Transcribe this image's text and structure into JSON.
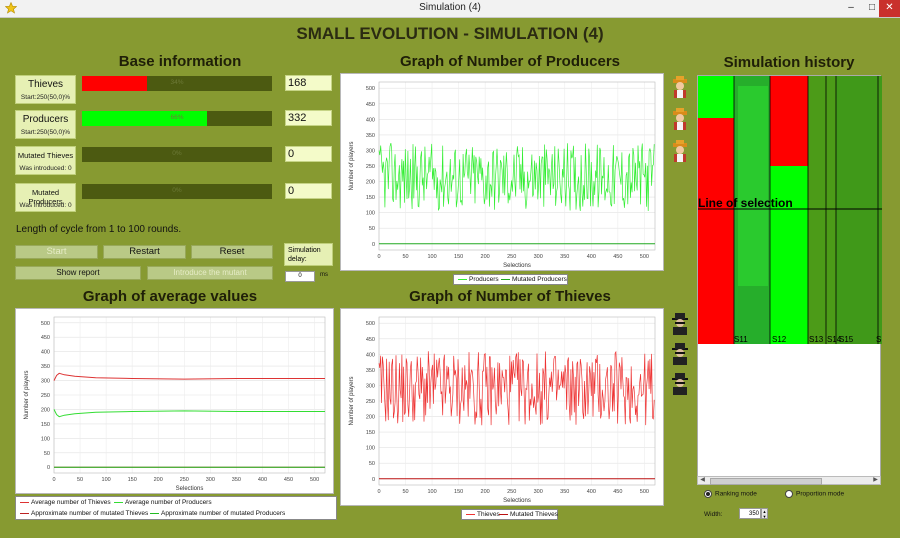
{
  "window": {
    "title": "Simulation (4)",
    "min": "–",
    "max": "□",
    "close": "✕",
    "app_icon": "star-icon"
  },
  "main_title": "SMALL EVOLUTION - SIMULATION (4)",
  "base_info": {
    "title": "Base information",
    "rows": [
      {
        "label": "Thieves",
        "sub": "Start:250(50,0)%",
        "percent": 34,
        "percent_text": "34%",
        "count": "168",
        "fill": "#ff0000"
      },
      {
        "label": "Producers",
        "sub": "Start:250(50,0)%",
        "percent": 66,
        "percent_text": "66%",
        "count": "332",
        "fill": "#00ff00"
      },
      {
        "label": "Mutated Thieves",
        "sub": "Was introduced: 0",
        "percent": 0,
        "percent_text": "0%",
        "count": "0",
        "fill": "#ff0000"
      },
      {
        "label": "Mutated Producers",
        "sub": "Was introduced: 0",
        "percent": 0,
        "percent_text": "0%",
        "count": "0",
        "fill": "#00ff00"
      }
    ],
    "cycle_text": "Length of cycle from 1 to 100 rounds.",
    "buttons": {
      "start": "Start",
      "restart": "Restart",
      "reset": "Reset",
      "show_report": "Show report",
      "introduce_mutant": "Introduce the mutant"
    },
    "delay": {
      "label": "Simulation delay:",
      "value": "0",
      "unit": "ms"
    }
  },
  "charts": {
    "producers_title": "Graph of Number of Producers",
    "thieves_title": "Graph of Number of Thieves",
    "average_title": "Graph of average values",
    "history_title": "Simulation history"
  },
  "chart_data": [
    {
      "type": "line",
      "title": "Graph of Number of Producers",
      "xlabel": "Selections",
      "ylabel": "Number of players",
      "xlim": [
        0,
        520
      ],
      "ylim": [
        -20,
        520
      ],
      "x_ticks": [
        0,
        50,
        100,
        150,
        200,
        250,
        300,
        350,
        400,
        450,
        500
      ],
      "y_ticks": [
        0,
        50,
        100,
        150,
        200,
        250,
        300,
        350,
        400,
        450,
        500
      ],
      "series": [
        {
          "name": "Producers",
          "color": "#33ee33",
          "center": 215,
          "amplitude": 110,
          "noisy": true
        },
        {
          "name": "Mutated Producers",
          "color": "#22aa22",
          "values": [
            0,
            0
          ]
        }
      ]
    },
    {
      "type": "line",
      "title": "Graph of Number of Thieves",
      "xlabel": "Selections",
      "ylabel": "Number of players",
      "xlim": [
        0,
        520
      ],
      "ylim": [
        -20,
        520
      ],
      "x_ticks": [
        0,
        50,
        100,
        150,
        200,
        250,
        300,
        350,
        400,
        450,
        500
      ],
      "y_ticks": [
        0,
        50,
        100,
        150,
        200,
        250,
        300,
        350,
        400,
        450,
        500
      ],
      "series": [
        {
          "name": "Thieves",
          "color": "#ee3333",
          "center": 290,
          "amplitude": 120,
          "noisy": true
        },
        {
          "name": "Mutated Thieves",
          "color": "#bb1111",
          "values": [
            0,
            0
          ]
        }
      ]
    },
    {
      "type": "line",
      "title": "Graph of average values",
      "xlabel": "Selections",
      "ylabel": "Number of players",
      "xlim": [
        0,
        520
      ],
      "ylim": [
        -20,
        520
      ],
      "x_ticks": [
        0,
        50,
        100,
        150,
        200,
        250,
        300,
        350,
        400,
        450,
        500
      ],
      "y_ticks": [
        0,
        50,
        100,
        150,
        200,
        250,
        300,
        350,
        400,
        450,
        500
      ],
      "series": [
        {
          "name": "Average number of Thieves",
          "color": "#dd3333",
          "x": [
            0,
            5,
            10,
            20,
            40,
            80,
            150,
            250,
            350,
            450,
            520
          ],
          "values": [
            300,
            318,
            325,
            320,
            315,
            310,
            307,
            305,
            307,
            307,
            307
          ]
        },
        {
          "name": "Average number of Producers",
          "color": "#33dd33",
          "x": [
            0,
            5,
            10,
            20,
            40,
            80,
            150,
            250,
            350,
            450,
            520
          ],
          "values": [
            200,
            182,
            175,
            180,
            185,
            190,
            193,
            195,
            193,
            193,
            193
          ]
        },
        {
          "name": "Approximate number of mutated Thieves",
          "color": "#bb2222",
          "x": [
            0,
            520
          ],
          "values": [
            0,
            0
          ]
        },
        {
          "name": "Approximate number of mutated Producers",
          "color": "#22bb22",
          "x": [
            0,
            520
          ],
          "values": [
            0,
            0
          ]
        }
      ]
    }
  ],
  "history": {
    "line_label": "Line of selection",
    "markers": [
      "S11",
      "S12",
      "S13",
      "S14",
      "S15",
      "S"
    ],
    "ranking_mode": "Ranking mode",
    "proportion_mode": "Proportion mode",
    "width_label": "Width:",
    "width_value": "350"
  },
  "icons": {
    "producer": "farmer-avatar-icon",
    "thief": "thief-avatar-icon"
  }
}
